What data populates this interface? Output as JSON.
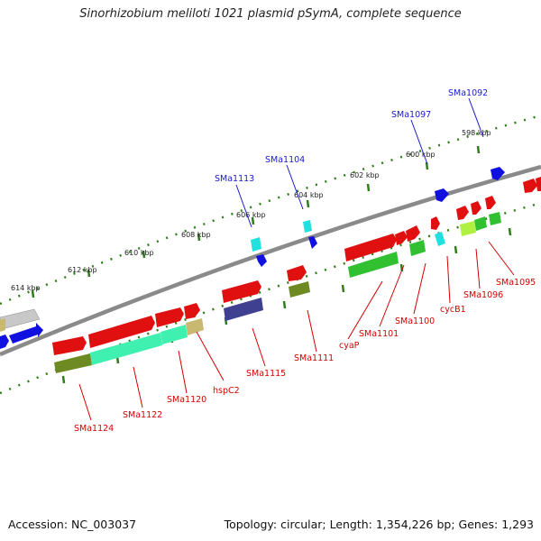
{
  "title": "Sinorhizobium meliloti 1021 plasmid pSymA, complete sequence",
  "footer": {
    "accession": "Accession: NC_003037",
    "summary": "Topology: circular; Length: 1,354,226 bp; Genes: 1,293"
  },
  "scale_labels": [
    "614 kbp",
    "612 kbp",
    "610 kbp",
    "608 kbp",
    "606 kbp",
    "604 kbp",
    "602 kbp",
    "600 kbp",
    "598 kbp"
  ],
  "gene_labels_top": [
    "SMa1113",
    "SMa1104",
    "SMa1097",
    "SMa1092"
  ],
  "gene_labels_bottom": [
    "SMa1124",
    "SMa1122",
    "SMa1120",
    "hspC2",
    "SMa1115",
    "SMa1111",
    "cyaP",
    "SMa1101",
    "SMa1100",
    "cycB1",
    "SMa1096",
    "SMa1095"
  ],
  "colors": {
    "backbone": "#8a8a8a",
    "tick": "#2e7d1a",
    "label_top": "#1a1acc",
    "label_bottom": "#d40000",
    "red": "#e01010",
    "blue": "#1010e0",
    "cyan": "#20e0e0",
    "green": "#30c030",
    "olive": "#6e8b23",
    "teal": "#40f0b0",
    "lime": "#b0f040",
    "khaki": "#c8b870",
    "navy": "#404090",
    "grey": "#c8c8c8"
  }
}
